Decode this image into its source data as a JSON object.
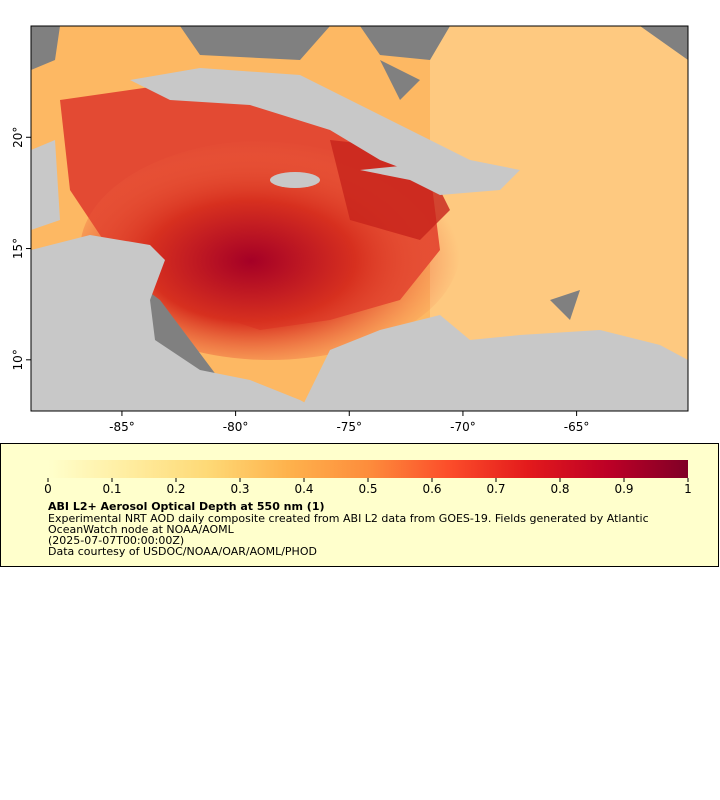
{
  "map": {
    "xlim": [
      -89,
      -60.1
    ],
    "ylim": [
      7.7,
      25
    ],
    "xticks": [
      {
        "value": -85,
        "label": "-85°"
      },
      {
        "value": -80,
        "label": "-80°"
      },
      {
        "value": -75,
        "label": "-75°"
      },
      {
        "value": -70,
        "label": "-70°"
      },
      {
        "value": -65,
        "label": "-65°"
      }
    ],
    "yticks": [
      {
        "value": 10,
        "label": "10°"
      },
      {
        "value": 15,
        "label": "15°"
      },
      {
        "value": 20,
        "label": "20°"
      }
    ]
  },
  "colorbar": {
    "range": [
      0,
      1
    ],
    "ticks": [
      0,
      0.1,
      0.2,
      0.3,
      0.4,
      0.5,
      0.6,
      0.7,
      0.8,
      0.9,
      1
    ],
    "colors": [
      "#ffffcc",
      "#ffeda0",
      "#fed976",
      "#feb24c",
      "#fd8d3c",
      "#fc4e2a",
      "#e31a1c",
      "#bd0026",
      "#800026"
    ]
  },
  "legend": {
    "title": "ABI L2+ Aerosol Optical Depth at 550 nm (1)",
    "lines": [
      "Experimental NRT AOD daily composite created from ABI L2 data from GOES-19. Fields generated by Atlantic",
      "OceanWatch node at NOAA/AOML",
      "(2025-07-07T00:00:00Z)",
      "Data courtesy of USDOC/NOAA/OAR/AOML/PHOD"
    ]
  }
}
